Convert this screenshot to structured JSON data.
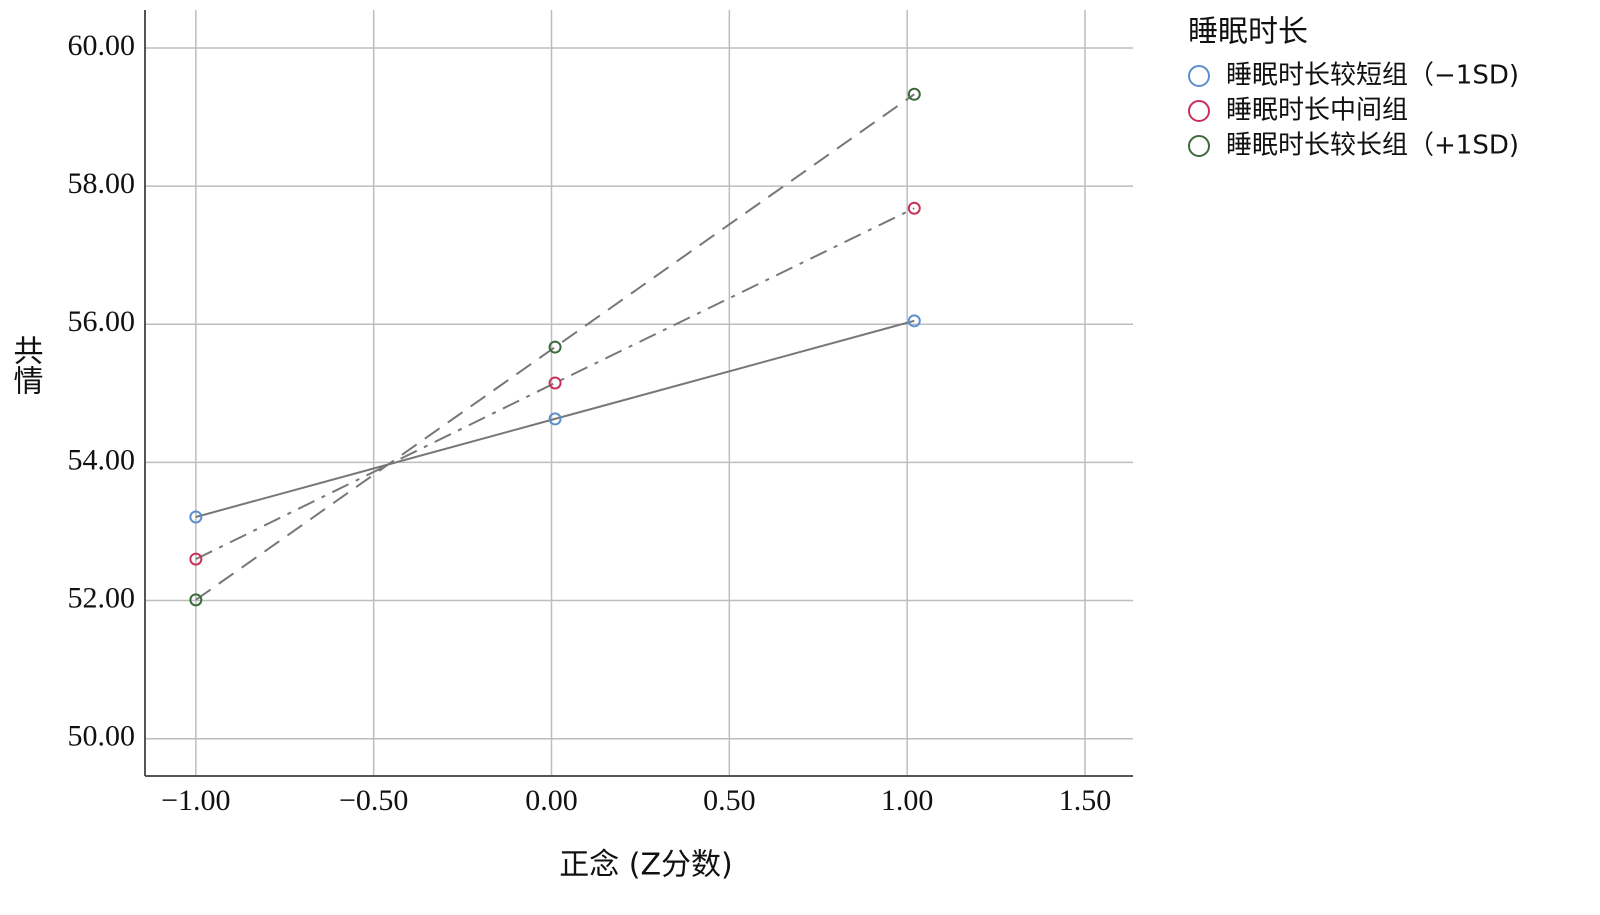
{
  "chart_data": {
    "type": "line",
    "x_label": "正念 (Z分数)",
    "y_label": "共情",
    "legend_title": "睡眠时长",
    "x": [
      -1.0,
      0.01,
      1.02
    ],
    "series": [
      {
        "name": "睡眠时长较短组（−1SD)",
        "color": "#5b8fd0",
        "line_style": "solid",
        "values": [
          53.21,
          54.63,
          56.05
        ]
      },
      {
        "name": "睡眠时长中间组",
        "color": "#c8325a",
        "line_style": "dashdot",
        "values": [
          52.6,
          55.15,
          57.68
        ]
      },
      {
        "name": "睡眠时长较长组（+1SD)",
        "color": "#3d6b3d",
        "line_style": "dashed",
        "values": [
          52.01,
          55.67,
          59.33
        ]
      }
    ],
    "xlim": [
      -1.143,
      1.635
    ],
    "ylim": [
      49.46,
      60.55
    ],
    "xticks": [
      {
        "value": -1,
        "label": "−1.00"
      },
      {
        "value": -0.5,
        "label": "−0.50"
      },
      {
        "value": 0,
        "label": "0.00"
      },
      {
        "value": 0.5,
        "label": "0.50"
      },
      {
        "value": 1,
        "label": "1.00"
      },
      {
        "value": 1.5,
        "label": "1.50"
      }
    ],
    "yticks": [
      {
        "value": 50,
        "label": "50.00"
      },
      {
        "value": 52,
        "label": "52.00"
      },
      {
        "value": 54,
        "label": "54.00"
      },
      {
        "value": 56,
        "label": "56.00"
      },
      {
        "value": 58,
        "label": "58.00"
      },
      {
        "value": 60,
        "label": "60.00"
      }
    ],
    "grid": true,
    "legend_position": "right"
  }
}
